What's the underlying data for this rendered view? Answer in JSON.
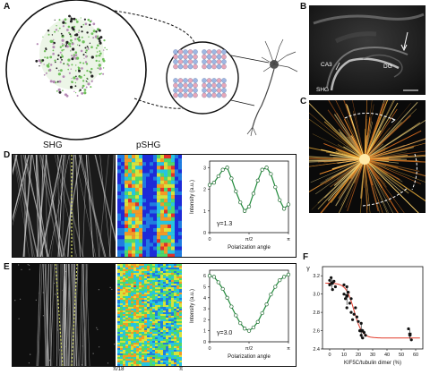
{
  "panels": {
    "A": {
      "label": "A"
    },
    "B": {
      "label": "B",
      "texts": {
        "ca3": "CA3",
        "dg": "DG",
        "shg": "SHG"
      }
    },
    "C": {
      "label": "C"
    },
    "D": {
      "label": "D",
      "col_shg": "SHG",
      "col_pshg": "pSHG",
      "gamma": "γ=1.3"
    },
    "E": {
      "label": "E",
      "gamma": "γ=3.0",
      "tick_left": "π/18",
      "tick_right": "π"
    },
    "F": {
      "label": "F"
    }
  },
  "plot_axes": {
    "ylabel": "Intensity (a.u.)",
    "xlabel": "Polarization angle",
    "xticks": [
      "0",
      "π/2",
      "π"
    ],
    "yticks_D": [
      "0",
      "1",
      "2",
      "3"
    ],
    "yticks_E": [
      "0",
      "1",
      "2",
      "3",
      "4",
      "5",
      "6"
    ]
  },
  "scatter_F": {
    "ylabel": "γ",
    "xlabel": "KIF5C/tubulin dimer (%)",
    "xticks": [
      "0",
      "10",
      "20",
      "30",
      "40",
      "50",
      "60"
    ],
    "yticks": [
      "2.4",
      "2.6",
      "2.8",
      "3.0",
      "3.2"
    ]
  },
  "chart_data": [
    {
      "type": "scatter",
      "panel": "D",
      "xlabel": "Polarization angle",
      "ylabel": "Intensity (a.u.)",
      "xlim": [
        0,
        3.1416
      ],
      "ylim": [
        0,
        3.3
      ],
      "annotation": "γ=1.3",
      "x": [
        0.0,
        0.1745,
        0.349,
        0.5236,
        0.698,
        0.8727,
        1.047,
        1.2217,
        1.396,
        1.5708,
        1.745,
        1.9199,
        2.094,
        2.2689,
        2.443,
        2.618,
        2.793,
        2.9671,
        3.1416
      ],
      "y": [
        2.2,
        2.3,
        2.6,
        2.9,
        3.0,
        2.5,
        1.9,
        1.4,
        1.0,
        1.2,
        1.8,
        2.4,
        2.9,
        3.0,
        2.7,
        2.1,
        1.5,
        1.1,
        1.3
      ],
      "fit_line": true
    },
    {
      "type": "scatter",
      "panel": "E",
      "xlabel": "Polarization angle",
      "ylabel": "Intensity (a.u.)",
      "xlim": [
        0,
        3.1416
      ],
      "ylim": [
        0,
        6.5
      ],
      "annotation": "γ=3.0",
      "x": [
        0.0,
        0.1745,
        0.349,
        0.5236,
        0.698,
        0.8727,
        1.047,
        1.2217,
        1.396,
        1.5708,
        1.745,
        1.9199,
        2.094,
        2.2689,
        2.443,
        2.618,
        2.793,
        2.9671,
        3.1416
      ],
      "y": [
        6.0,
        5.9,
        5.4,
        4.8,
        4.0,
        3.2,
        2.4,
        1.7,
        1.2,
        1.0,
        1.3,
        1.8,
        2.6,
        3.4,
        4.3,
        5.0,
        5.6,
        5.9,
        6.1
      ],
      "fit_line": true
    },
    {
      "type": "scatter",
      "panel": "F",
      "xlabel": "KIF5C/tubulin dimer (%)",
      "ylabel": "γ",
      "xlim": [
        -5,
        65
      ],
      "ylim": [
        2.4,
        3.3
      ],
      "x": [
        0,
        0,
        1,
        2,
        2,
        3,
        4,
        10,
        10,
        11,
        12,
        12,
        13,
        14,
        15,
        15,
        16,
        17,
        18,
        19,
        20,
        21,
        22,
        22,
        23,
        23,
        24,
        25,
        55,
        56,
        57
      ],
      "y": [
        3.15,
        3.1,
        3.18,
        3.12,
        3.05,
        3.14,
        3.08,
        3.1,
        3.0,
        2.95,
        3.08,
        2.85,
        3.02,
        2.9,
        2.8,
        2.95,
        2.72,
        2.78,
        2.85,
        2.75,
        2.7,
        2.6,
        2.55,
        2.68,
        2.6,
        2.52,
        2.58,
        2.55,
        2.62,
        2.55,
        2.5
      ],
      "fit_line": true
    }
  ]
}
